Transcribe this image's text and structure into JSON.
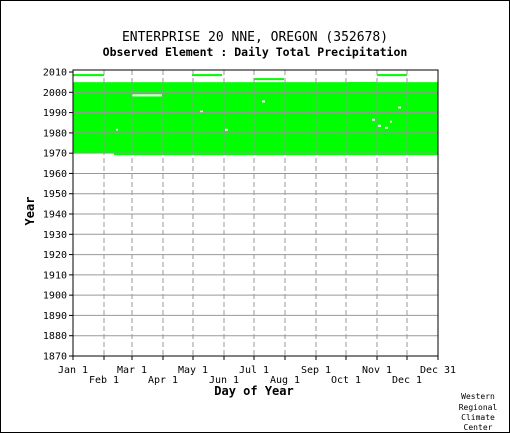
{
  "chart_data": {
    "type": "heatmap",
    "title": "ENTERPRISE 20 NNE, OREGON   (352678)",
    "subtitle": "Observed Element : Daily Total Precipitation",
    "xlabel": "Day of Year",
    "ylabel": "Year",
    "x_ticks_row1": [
      "Jan 1",
      "Mar 1",
      "May 1",
      "Jul 1",
      "Sep 1",
      "Nov 1",
      "Dec 31"
    ],
    "x_ticks_row2": [
      "Feb 1",
      "Apr 1",
      "Jun 1",
      "Aug 1",
      "Oct 1",
      "Dec 1"
    ],
    "y_ticks": [
      "2010",
      "2000",
      "1990",
      "1980",
      "1970",
      "1960",
      "1950",
      "1940",
      "1930",
      "1920",
      "1910",
      "1900",
      "1890",
      "1880",
      "1870"
    ],
    "ylim": [
      1870,
      2011
    ],
    "xlim": [
      1,
      366
    ],
    "grid": true,
    "fill_color": "#00ff00",
    "period_of_record": {
      "start_year": 1969,
      "end_year": 2010
    },
    "coverage": [
      {
        "start_day": 1,
        "end_day": 42,
        "start_year": 1970,
        "end_year": 2005
      },
      {
        "start_day": 42,
        "end_day": 60,
        "start_year": 1969,
        "end_year": 2005
      },
      {
        "start_day": 60,
        "end_day": 366,
        "start_year": 1969,
        "end_year": 2005
      },
      {
        "start_day": 1,
        "end_day": 32,
        "start_year": 2008,
        "end_year": 2009
      },
      {
        "start_day": 120,
        "end_day": 150,
        "start_year": 2008,
        "end_year": 2009
      },
      {
        "start_day": 305,
        "end_day": 335,
        "start_year": 2008,
        "end_year": 2009
      },
      {
        "start_day": 122,
        "end_day": 151,
        "start_year": 2003,
        "end_year": 2004
      },
      {
        "start_day": 182,
        "end_day": 212,
        "start_year": 2006,
        "end_year": 2007
      },
      {
        "start_day": 248,
        "end_day": 273,
        "start_year": 2002,
        "end_year": 2003
      },
      {
        "start_day": 275,
        "end_day": 305,
        "start_year": 2004,
        "end_year": 2005
      },
      {
        "start_day": 335,
        "end_day": 366,
        "start_year": 2003,
        "end_year": 2004
      }
    ],
    "missing": [
      {
        "start_day": 60,
        "end_day": 90,
        "start_year": 1998,
        "end_year": 1999
      },
      {
        "start_day": 44,
        "end_day": 46,
        "start_year": 1981,
        "end_year": 1982
      },
      {
        "start_day": 128,
        "end_day": 131,
        "start_year": 1990,
        "end_year": 1991
      },
      {
        "start_day": 153,
        "end_day": 156,
        "start_year": 1981,
        "end_year": 1982
      },
      {
        "start_day": 190,
        "end_day": 193,
        "start_year": 1995,
        "end_year": 1996
      },
      {
        "start_day": 300,
        "end_day": 303,
        "start_year": 1986,
        "end_year": 1987
      },
      {
        "start_day": 306,
        "end_day": 309,
        "start_year": 1983,
        "end_year": 1984
      },
      {
        "start_day": 313,
        "end_day": 316,
        "start_year": 1982,
        "end_year": 1983
      },
      {
        "start_day": 318,
        "end_day": 320,
        "start_year": 1985,
        "end_year": 1986
      },
      {
        "start_day": 326,
        "end_day": 329,
        "start_year": 1992,
        "end_year": 1993
      }
    ]
  },
  "credit": [
    "Western",
    "Regional",
    "Climate",
    "Center"
  ]
}
